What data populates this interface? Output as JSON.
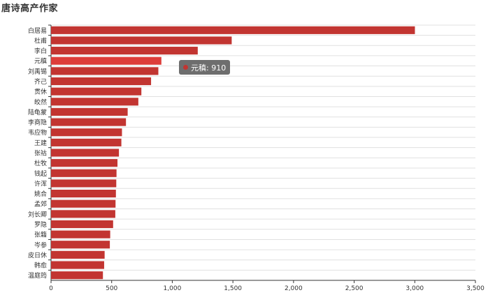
{
  "title": "唐诗高产作家",
  "chart_data": {
    "type": "bar",
    "orientation": "horizontal",
    "title": "唐诗高产作家",
    "categories": [
      "白居易",
      "杜甫",
      "李白",
      "元稹",
      "刘禹锡",
      "齐己",
      "贯休",
      "皎然",
      "陆龟蒙",
      "李商隐",
      "韦应物",
      "王建",
      "张祜",
      "杜牧",
      "钱起",
      "许浑",
      "姚合",
      "孟郊",
      "刘长卿",
      "罗隐",
      "张籍",
      "岑参",
      "皮日休",
      "韩愈",
      "温庭筠"
    ],
    "values": [
      3001,
      1490,
      1210,
      910,
      885,
      825,
      745,
      720,
      632,
      618,
      585,
      580,
      560,
      548,
      540,
      538,
      535,
      532,
      530,
      512,
      488,
      485,
      442,
      438,
      428
    ],
    "xlim": [
      0,
      3500
    ],
    "xticks": [
      "0",
      "500",
      "1,000",
      "1,500",
      "2,000",
      "2,500",
      "3,000",
      "3,500"
    ],
    "grid": true,
    "bar_color": "#c23531",
    "highlight_color": "#dd3d3a",
    "highlight_index": 3
  },
  "tooltip": {
    "text": "元稹: 910",
    "background": "#6e6e6e",
    "marker_color": "#c23531"
  }
}
